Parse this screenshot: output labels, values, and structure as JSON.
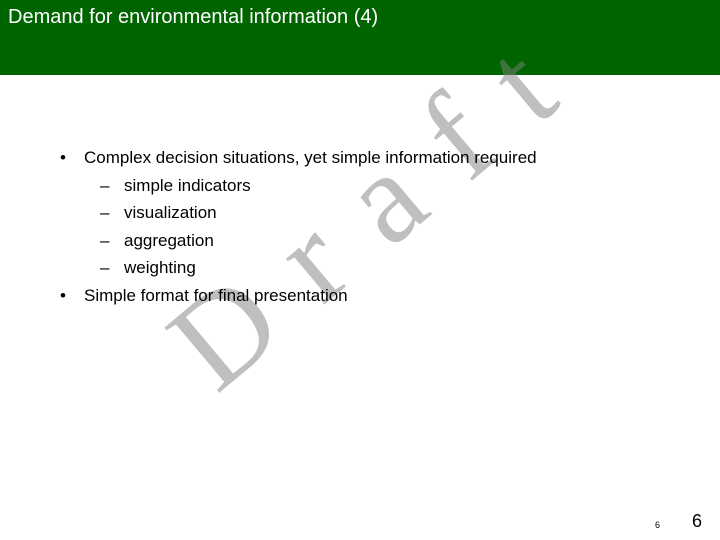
{
  "title_bar": {
    "text": "Demand for environmental information (4)",
    "bg_color": "#006400",
    "text_color": "#ffffff",
    "font_size": 20
  },
  "watermark": {
    "text": "D r a f t",
    "color": "#808080",
    "opacity": 0.5,
    "rotation_deg": -40,
    "font_size": 130,
    "font_family": "Times New Roman"
  },
  "content": {
    "font_size": 17,
    "text_color": "#000000",
    "items": [
      {
        "bullet": "•",
        "text": "Complex decision situations, yet simple information required",
        "children": [
          {
            "bullet": "–",
            "text": "simple indicators"
          },
          {
            "bullet": "–",
            "text": "visualization"
          },
          {
            "bullet": "–",
            "text": "aggregation"
          },
          {
            "bullet": "–",
            "text": "weighting"
          }
        ]
      },
      {
        "bullet": "•",
        "text": "Simple format for final presentation",
        "children": []
      }
    ]
  },
  "footer": {
    "small_number": "6",
    "large_number": "6"
  },
  "background_color": "#ffffff"
}
